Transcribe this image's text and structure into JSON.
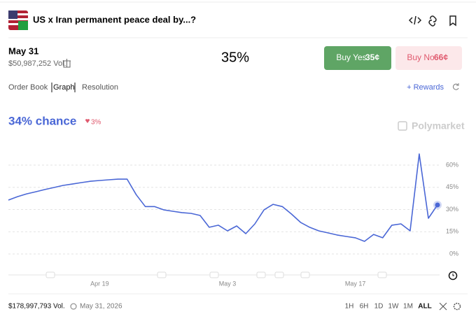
{
  "header": {
    "title": "US x Iran permanent peace deal by...?"
  },
  "market": {
    "date": "May 31",
    "volume": "$50,987,252 Vol.",
    "price": "35%",
    "buy_yes": {
      "label": "Buy Yes",
      "price": "35¢"
    },
    "buy_no": {
      "label": "Buy No",
      "price": "66¢"
    }
  },
  "tabs": [
    "Order Book",
    "Graph",
    "Resolution"
  ],
  "rewards": "+ Rewards",
  "chance": "34% chance",
  "change": "3%",
  "brand": "Polymarket",
  "footer": {
    "volume": "$178,997,793 Vol.",
    "end_date": "May 31, 2026",
    "ranges": [
      "1H",
      "6H",
      "1D",
      "1W",
      "1M",
      "ALL"
    ]
  },
  "chart_data": {
    "type": "line",
    "categories": [
      null,
      null,
      null,
      null,
      null,
      null,
      null,
      null,
      null,
      null,
      "Apr 19",
      null,
      null,
      null,
      null,
      null,
      null,
      null,
      null,
      null,
      null,
      null,
      null,
      null,
      "May 3",
      null,
      null,
      null,
      null,
      null,
      null,
      null,
      null,
      null,
      null,
      null,
      null,
      null,
      "May 17",
      null,
      null,
      null,
      null,
      null,
      null,
      null,
      null,
      null
    ],
    "series": [
      {
        "color": "#4a67d6",
        "values": [
          36.4,
          38.7,
          40.6,
          42,
          43.5,
          44.9,
          46.3,
          47.2,
          48.2,
          49.1,
          49.6,
          50.1,
          50.5,
          50.5,
          40,
          32,
          32,
          29.8,
          28.8,
          27.9,
          27.4,
          26,
          18,
          19.4,
          15.6,
          18.9,
          13.7,
          20.3,
          29.8,
          33.5,
          32,
          27,
          21.3,
          18,
          15.6,
          14.2,
          12.8,
          11.8,
          10.9,
          8.5,
          13.2,
          10.9,
          19.4,
          20.3,
          15.6,
          67.5,
          24.1,
          33.1
        ]
      }
    ],
    "ylim": [
      0,
      60
    ],
    "yticks": [
      {
        "value": 0,
        "label": "0%"
      },
      {
        "value": 15,
        "label": "15%"
      },
      {
        "value": 30,
        "label": "30%"
      },
      {
        "value": 45,
        "label": "45%"
      },
      {
        "value": 60,
        "label": "60%"
      }
    ],
    "grid": true
  }
}
